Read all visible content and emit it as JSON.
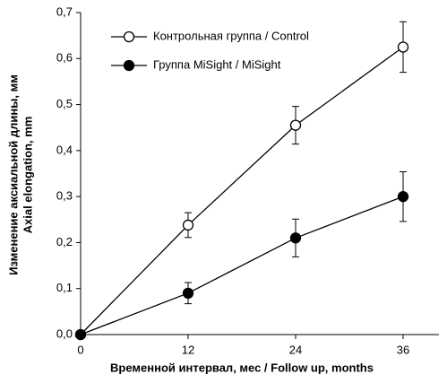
{
  "chart_data": {
    "type": "line",
    "xlabel": "Временной интервал, мес / Follow up, months",
    "ylabel": [
      "Изменение аксиальной длины, мм",
      "Axial elongation, mm"
    ],
    "x": [
      0,
      12,
      24,
      36
    ],
    "series": [
      {
        "name": "Контрольная группа / Control",
        "color": "#000000",
        "marker_fill": "#ffffff",
        "values": [
          0,
          0.238,
          0.455,
          0.625
        ],
        "errors": [
          0,
          0.027,
          0.041,
          0.055
        ]
      },
      {
        "name": "Группа MiSight / MiSight",
        "color": "#000000",
        "marker_fill": "#000000",
        "values": [
          0,
          0.09,
          0.21,
          0.3
        ],
        "errors": [
          0,
          0.023,
          0.041,
          0.054
        ]
      }
    ],
    "xlim": [
      0,
      40
    ],
    "xticks": [
      0,
      12,
      24,
      36
    ],
    "ylim": [
      0,
      0.7
    ],
    "yticks": [
      {
        "value": 0,
        "label": "0,0"
      },
      {
        "value": 0.1,
        "label": "0,1"
      },
      {
        "value": 0.2,
        "label": "0,2"
      },
      {
        "value": 0.3,
        "label": "0,3"
      },
      {
        "value": 0.4,
        "label": "0,4"
      },
      {
        "value": 0.5,
        "label": "0,5"
      },
      {
        "value": 0.6,
        "label": "0,6"
      },
      {
        "value": 0.7,
        "label": "0,7"
      }
    ],
    "legend": "top-left",
    "grid": false
  }
}
